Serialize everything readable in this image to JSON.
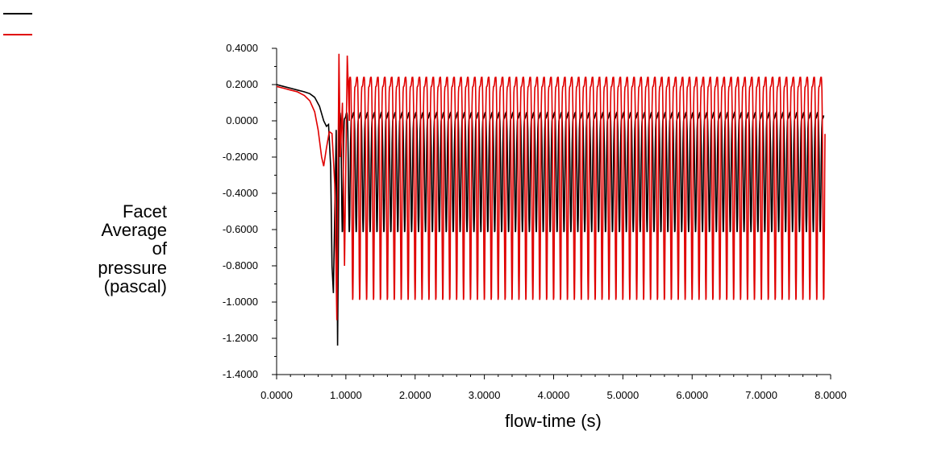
{
  "chart_data": {
    "type": "line",
    "title": "",
    "xlabel": "flow-time (s)",
    "ylabel_lines": [
      "Facet",
      "Average",
      "of",
      "pressure",
      "(pascal)"
    ],
    "xlim": [
      0,
      8
    ],
    "ylim": [
      -1.4,
      0.4
    ],
    "x_ticks": [
      "0.0000",
      "1.0000",
      "2.0000",
      "3.0000",
      "4.0000",
      "5.0000",
      "6.0000",
      "7.0000",
      "8.0000"
    ],
    "y_ticks": [
      "0.4000",
      "0.2000",
      "0.0000",
      "-0.2000",
      "-0.4000",
      "-0.6000",
      "-0.8000",
      "-1.0000",
      "-1.2000",
      "-1.4000"
    ],
    "legend_placement": "top-left",
    "grid": false,
    "series": [
      {
        "color": "#000000",
        "startup_points": [
          [
            0.0,
            0.2
          ],
          [
            0.1,
            0.19
          ],
          [
            0.2,
            0.18
          ],
          [
            0.3,
            0.17
          ],
          [
            0.4,
            0.16
          ],
          [
            0.48,
            0.15
          ],
          [
            0.55,
            0.13
          ],
          [
            0.62,
            0.08
          ],
          [
            0.68,
            0.0
          ],
          [
            0.72,
            -0.03
          ],
          [
            0.75,
            -0.02
          ],
          [
            0.78,
            -0.25
          ],
          [
            0.8,
            -0.8
          ],
          [
            0.82,
            -0.95
          ],
          [
            0.84,
            -0.5
          ],
          [
            0.86,
            -0.05
          ],
          [
            0.88,
            -1.24
          ],
          [
            0.9,
            -0.3
          ]
        ],
        "osc_start": 0.9,
        "osc_end": 7.9,
        "osc_period": 0.1,
        "osc_max": 0.03,
        "osc_min": -0.62
      },
      {
        "color": "#e00000",
        "startup_points": [
          [
            0.0,
            0.19
          ],
          [
            0.1,
            0.18
          ],
          [
            0.2,
            0.17
          ],
          [
            0.3,
            0.16
          ],
          [
            0.4,
            0.14
          ],
          [
            0.48,
            0.11
          ],
          [
            0.55,
            0.05
          ],
          [
            0.6,
            -0.05
          ],
          [
            0.65,
            -0.2
          ],
          [
            0.68,
            -0.25
          ],
          [
            0.72,
            -0.15
          ],
          [
            0.76,
            -0.06
          ],
          [
            0.8,
            -0.07
          ],
          [
            0.84,
            -0.35
          ],
          [
            0.87,
            -1.1
          ],
          [
            0.9,
            0.37
          ],
          [
            0.92,
            -0.2
          ],
          [
            0.95,
            0.1
          ],
          [
            0.98,
            -0.8
          ],
          [
            1.02,
            0.36
          ],
          [
            1.05,
            0.0
          ]
        ],
        "osc_start": 1.05,
        "osc_end": 7.92,
        "osc_period": 0.1,
        "osc_max": 0.22,
        "osc_min": -1.0
      }
    ]
  }
}
